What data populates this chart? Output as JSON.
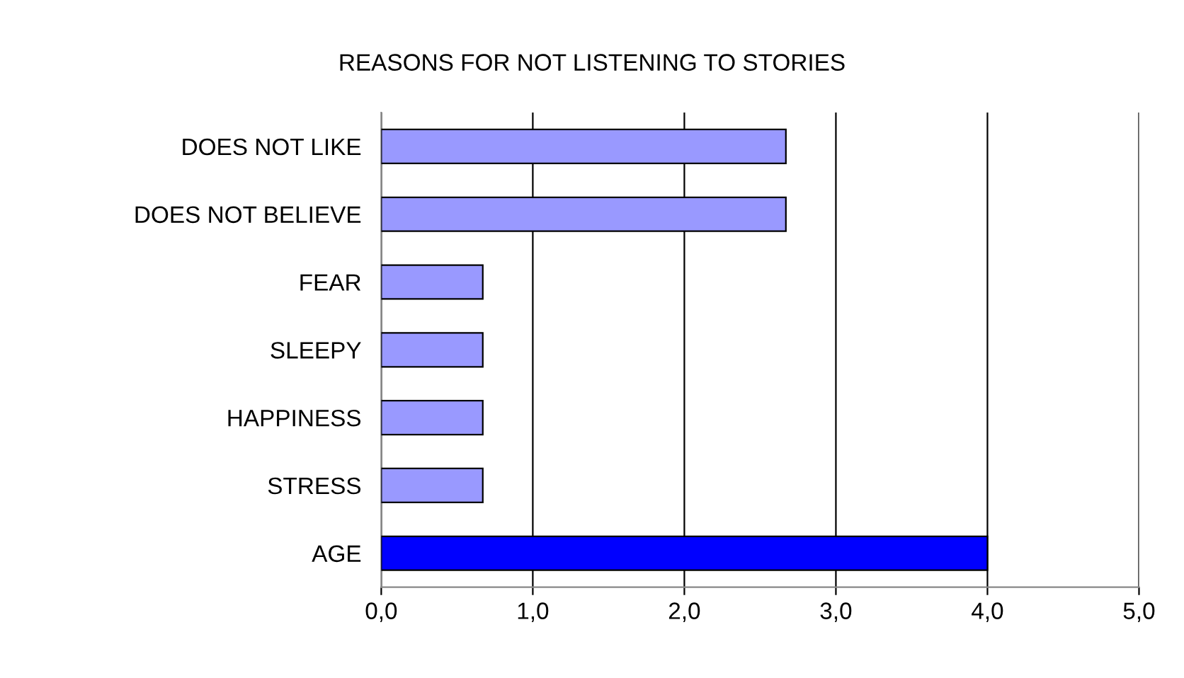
{
  "chart_data": {
    "type": "bar",
    "orientation": "horizontal",
    "title": "REASONS FOR NOT LISTENING TO STORIES",
    "categories": [
      "DOES NOT LIKE",
      "DOES NOT BELIEVE",
      "FEAR",
      "SLEEPY",
      "HAPPINESS",
      "STRESS",
      "AGE"
    ],
    "values": [
      2.67,
      2.67,
      0.67,
      0.67,
      0.67,
      0.67,
      4.0
    ],
    "colors": [
      "#9999ff",
      "#9999ff",
      "#9999ff",
      "#9999ff",
      "#9999ff",
      "#9999ff",
      "#0000ff"
    ],
    "xlim": [
      0,
      5
    ],
    "xticks": [
      {
        "value": 0,
        "label": "0,0"
      },
      {
        "value": 1,
        "label": "1,0"
      },
      {
        "value": 2,
        "label": "2,0"
      },
      {
        "value": 3,
        "label": "3,0"
      },
      {
        "value": 4,
        "label": "4,0"
      },
      {
        "value": 5,
        "label": "5,0"
      }
    ],
    "grid": "x",
    "legend": false
  }
}
